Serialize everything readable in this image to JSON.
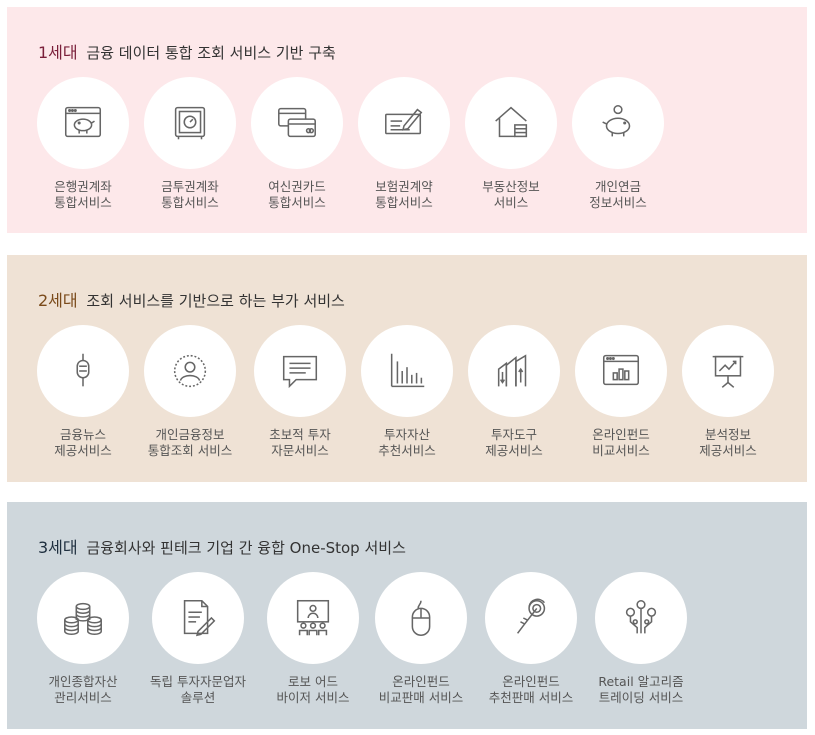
{
  "gen1": {
    "gen": "1세대",
    "title": "금융 데이터 통합 조회 서비스 기반 구축",
    "items": [
      {
        "line1": "은행권계좌",
        "line2": "통합서비스",
        "icon": "piggy-bank-browser-icon"
      },
      {
        "line1": "금투권계좌",
        "line2": "통합서비스",
        "icon": "safe-icon"
      },
      {
        "line1": "여신권카드",
        "line2": "통합서비스",
        "icon": "credit-cards-icon"
      },
      {
        "line1": "보험권계약",
        "line2": "통합서비스",
        "icon": "contract-sign-icon"
      },
      {
        "line1": "부동산정보",
        "line2": "서비스",
        "icon": "house-icon"
      },
      {
        "line1": "개인연금",
        "line2": "정보서비스",
        "icon": "pension-piggy-icon"
      }
    ]
  },
  "gen2": {
    "gen": "2세대",
    "title": "조회 서비스를 기반으로 하는 부가 서비스",
    "items": [
      {
        "line1": "금융뉴스",
        "line2": "제공서비스",
        "icon": "microphone-icon"
      },
      {
        "line1": "개인금융정보",
        "line2": "통합조회 서비스",
        "icon": "user-profile-icon"
      },
      {
        "line1": "초보적 투자",
        "line2": "자문서비스",
        "icon": "chat-bubble-icon"
      },
      {
        "line1": "투자자산",
        "line2": "추천서비스",
        "icon": "bar-chart-icon"
      },
      {
        "line1": "투자도구",
        "line2": "제공서비스",
        "icon": "buildings-arrows-icon"
      },
      {
        "line1": "온라인펀드",
        "line2": "비교서비스",
        "icon": "browser-chart-icon"
      },
      {
        "line1": "분석정보",
        "line2": "제공서비스",
        "icon": "presentation-board-icon"
      }
    ]
  },
  "gen3": {
    "gen": "3세대",
    "title": "금융회사와 핀테크 기업 간 융합 One-Stop 서비스",
    "items": [
      {
        "line1": "개인종합자산",
        "line2": "관리서비스",
        "icon": "coin-stacks-icon"
      },
      {
        "line1": "독립 투자자문업자",
        "line2": "솔루션",
        "icon": "document-pen-icon"
      },
      {
        "line1": "로보 어드",
        "line2": "바이저 서비스",
        "icon": "robo-advisor-screen-icon"
      },
      {
        "line1": "온라인펀드",
        "line2": "비교판매 서비스",
        "icon": "computer-mouse-icon"
      },
      {
        "line1": "온라인펀드",
        "line2": "추천판매 서비스",
        "icon": "touch-hand-icon"
      },
      {
        "line1": "Retail 알고리즘",
        "line2": "트레이딩 서비스",
        "icon": "algorithm-tree-icon"
      }
    ]
  }
}
